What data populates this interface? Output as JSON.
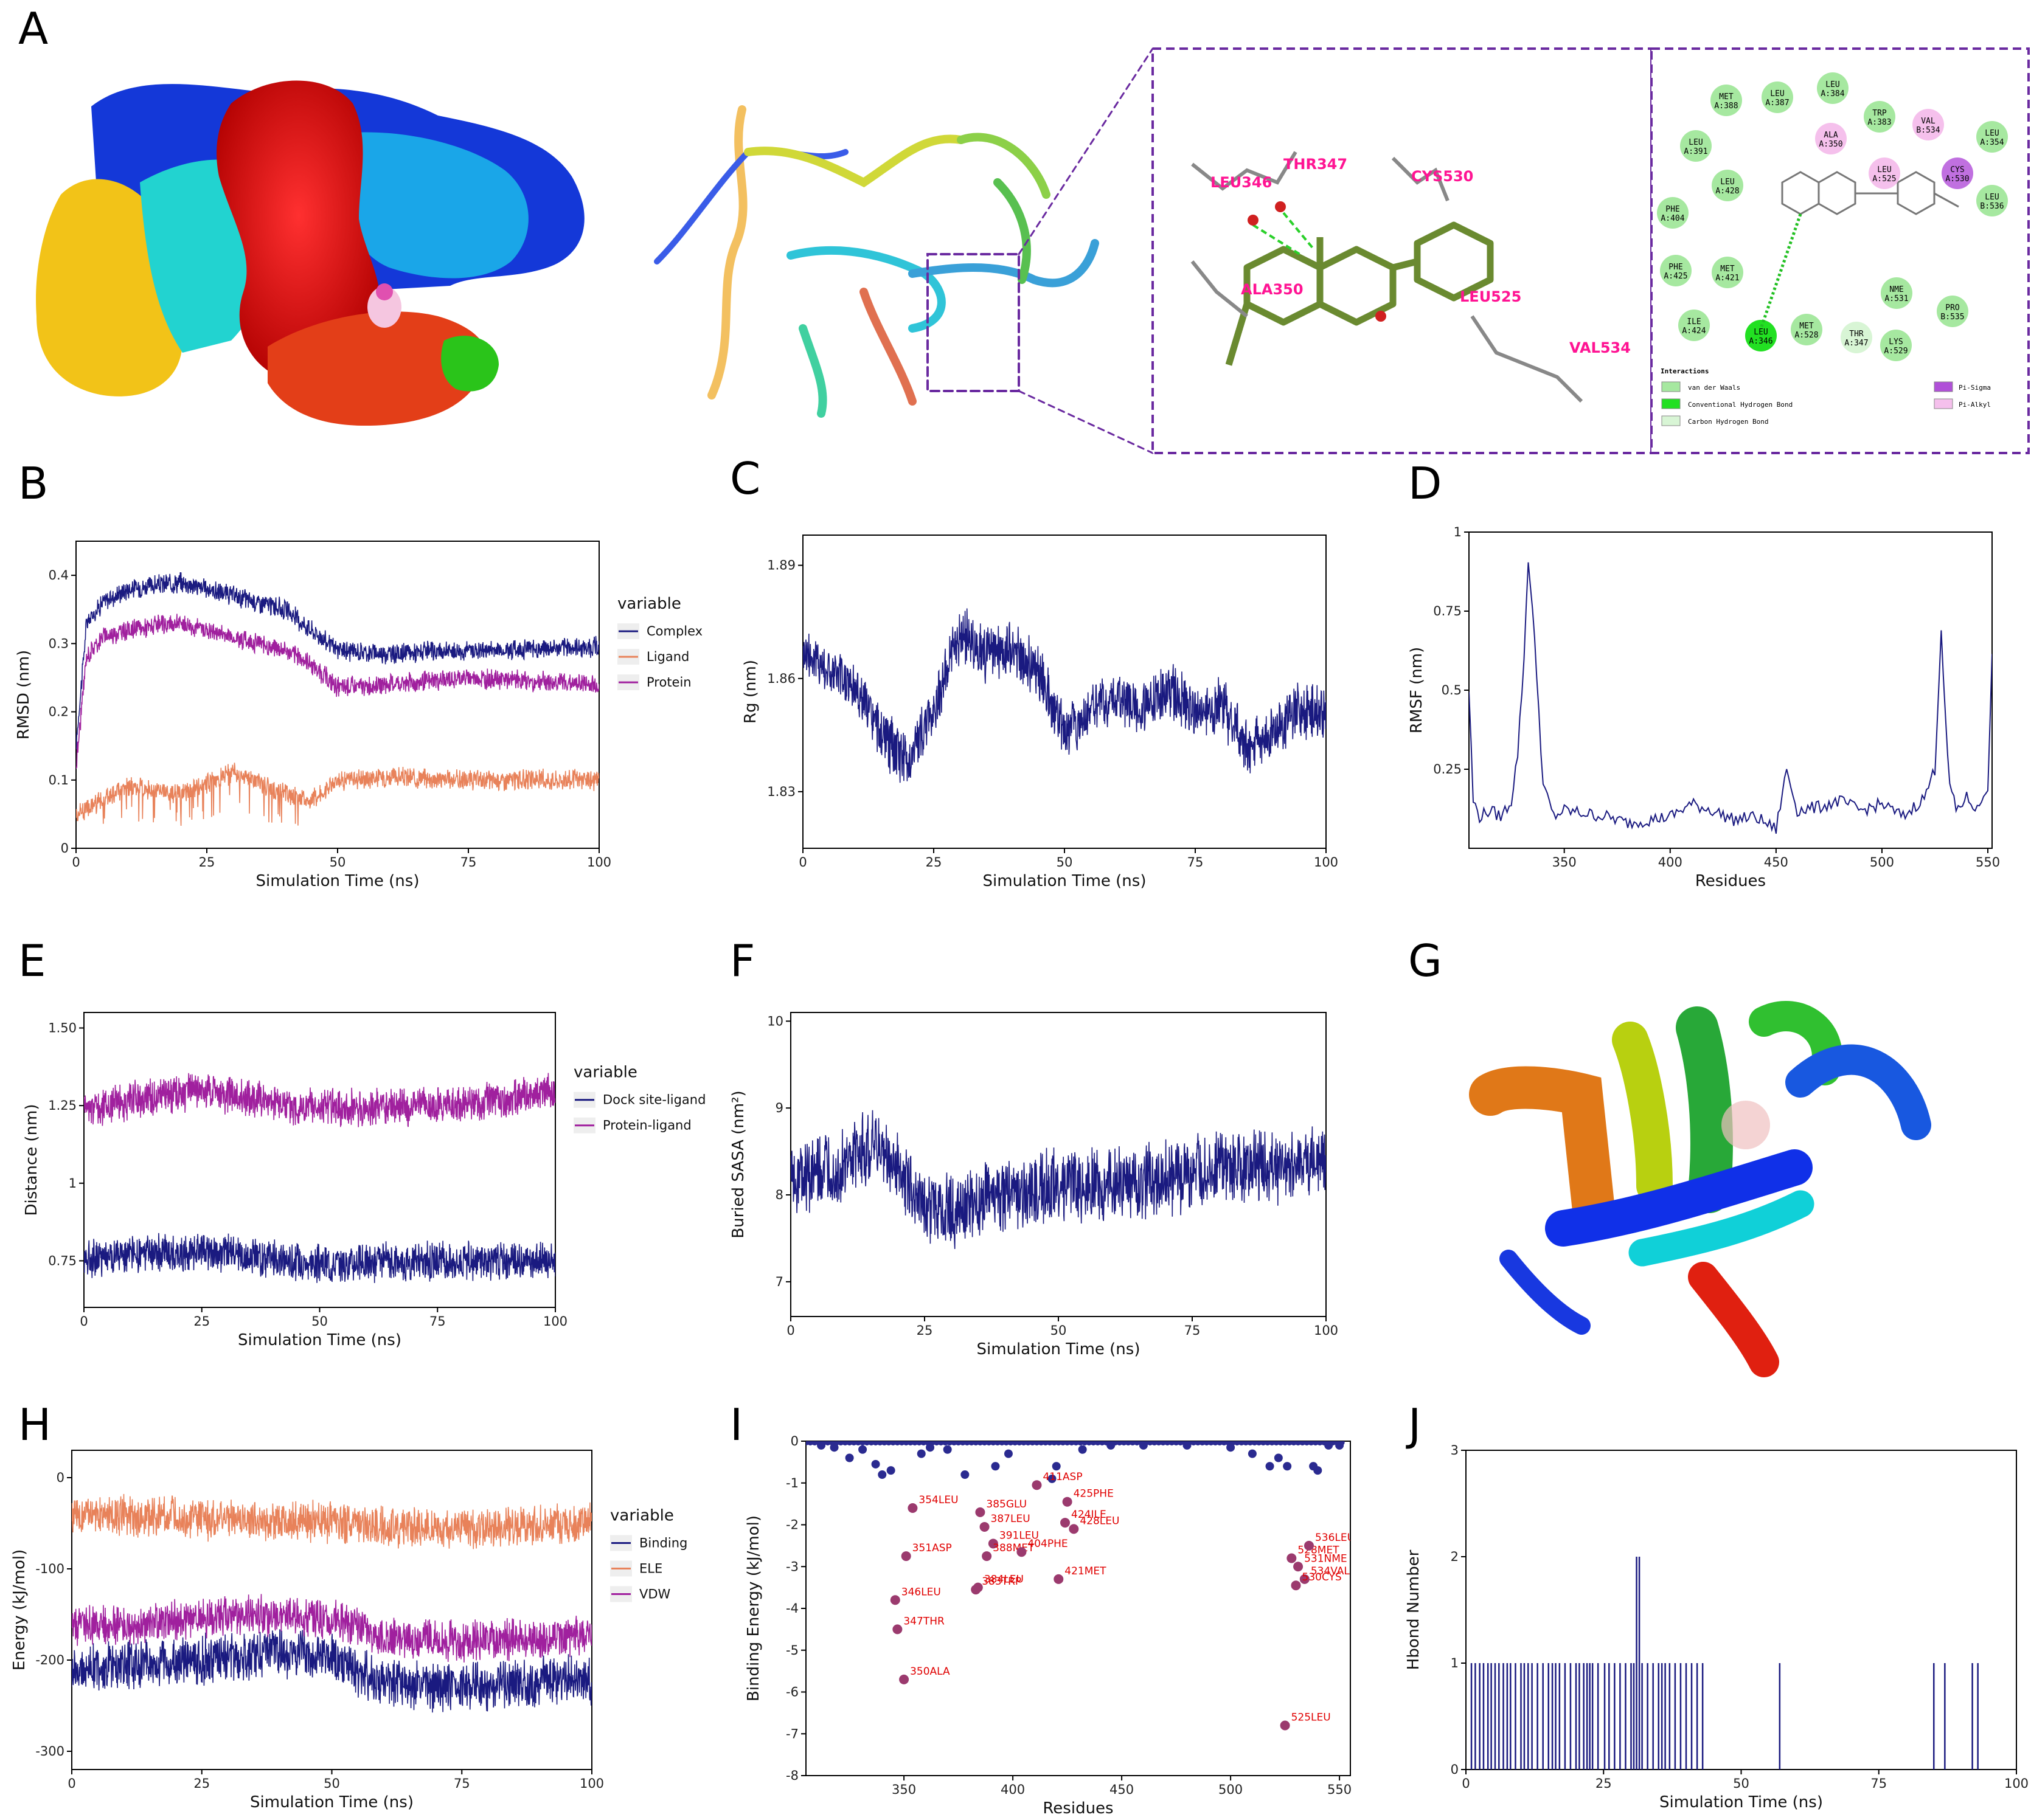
{
  "panel_labels": {
    "A": "A",
    "B": "B",
    "C": "C",
    "D": "D",
    "E": "E",
    "F": "F",
    "G": "G",
    "H": "H",
    "I": "I",
    "J": "J"
  },
  "colors": {
    "navy": "#1a1a80",
    "orange": "#e8825a",
    "purple": "#a0209e",
    "point": "#9b3a6e",
    "annot": "#e00000",
    "pink": "#ff1493"
  },
  "panelA": {
    "residue_labels": [
      "LEU346",
      "THR347",
      "CYS530",
      "ALA350",
      "LEU525",
      "VAL534"
    ],
    "nodes": [
      {
        "name": "MET",
        "num": "A:388"
      },
      {
        "name": "LEU",
        "num": "A:387"
      },
      {
        "name": "LEU",
        "num": "A:384"
      },
      {
        "name": "TRP",
        "num": "A:383"
      },
      {
        "name": "VAL",
        "num": "B:534"
      },
      {
        "name": "LEU",
        "num": "A:354"
      },
      {
        "name": "LEU",
        "num": "A:391"
      },
      {
        "name": "ALA",
        "num": "A:350"
      },
      {
        "name": "LEU",
        "num": "A:428"
      },
      {
        "name": "LEU",
        "num": "A:525"
      },
      {
        "name": "CYS",
        "num": "A:530"
      },
      {
        "name": "LEU",
        "num": "B:536"
      },
      {
        "name": "PHE",
        "num": "A:404"
      },
      {
        "name": "PHE",
        "num": "A:425"
      },
      {
        "name": "MET",
        "num": "A:421"
      },
      {
        "name": "NME",
        "num": "A:531"
      },
      {
        "name": "ILE",
        "num": "A:424"
      },
      {
        "name": "LEU",
        "num": "A:346"
      },
      {
        "name": "MET",
        "num": "A:528"
      },
      {
        "name": "THR",
        "num": "A:347"
      },
      {
        "name": "PRO",
        "num": "B:535"
      },
      {
        "name": "LYS",
        "num": "A:529"
      }
    ],
    "interactions_title": "Interactions",
    "interactions": [
      "van der Waals",
      "Conventional Hydrogen Bond",
      "Carbon Hydrogen Bond",
      "Pi-Sigma",
      "Pi-Alkyl"
    ]
  },
  "chart_data": [
    {
      "panel": "B",
      "type": "line",
      "xlabel": "Simulation Time (ns)",
      "ylabel": "RMSD (nm)",
      "xlim": [
        0,
        100
      ],
      "ylim": [
        0,
        0.45
      ],
      "xticks": [
        "0",
        "25",
        "50",
        "75",
        "100"
      ],
      "yticks": [
        "0",
        "0.1",
        "0.2",
        "0.3",
        "0.4"
      ],
      "legend_title": "variable",
      "series": [
        {
          "name": "Complex",
          "color": "#1a1a80",
          "x": [
            0,
            2,
            5,
            10,
            20,
            30,
            40,
            45,
            50,
            60,
            75,
            100
          ],
          "values": [
            0.15,
            0.33,
            0.36,
            0.38,
            0.39,
            0.37,
            0.35,
            0.32,
            0.29,
            0.285,
            0.29,
            0.295
          ]
        },
        {
          "name": "Ligand",
          "color": "#e8825a",
          "x": [
            0,
            10,
            20,
            30,
            40,
            45,
            50,
            60,
            75,
            100
          ],
          "values": [
            0.05,
            0.09,
            0.08,
            0.11,
            0.08,
            0.07,
            0.1,
            0.105,
            0.1,
            0.1
          ]
        },
        {
          "name": "Protein",
          "color": "#a0209e",
          "x": [
            0,
            2,
            5,
            10,
            20,
            30,
            40,
            45,
            50,
            60,
            75,
            100
          ],
          "values": [
            0.12,
            0.28,
            0.31,
            0.32,
            0.33,
            0.31,
            0.29,
            0.27,
            0.235,
            0.24,
            0.25,
            0.24
          ]
        }
      ]
    },
    {
      "panel": "C",
      "type": "line",
      "xlabel": "Simulation Time (ns)",
      "ylabel": "Rg (nm)",
      "xlim": [
        0,
        100
      ],
      "ylim": [
        1.815,
        1.898
      ],
      "xticks": [
        "0",
        "25",
        "50",
        "75",
        "100"
      ],
      "yticks": [
        "1.83",
        "1.86",
        "1.89"
      ],
      "series": [
        {
          "name": "Rg",
          "color": "#1a1a80",
          "x": [
            0,
            5,
            10,
            15,
            20,
            25,
            30,
            35,
            40,
            45,
            50,
            55,
            60,
            65,
            70,
            75,
            80,
            85,
            90,
            95,
            100
          ],
          "values": [
            1.868,
            1.862,
            1.858,
            1.845,
            1.838,
            1.852,
            1.872,
            1.866,
            1.868,
            1.862,
            1.846,
            1.852,
            1.855,
            1.852,
            1.858,
            1.85,
            1.853,
            1.842,
            1.846,
            1.852,
            1.851
          ]
        }
      ]
    },
    {
      "panel": "D",
      "type": "line",
      "xlabel": "Residues",
      "ylabel": "RMSF (nm)",
      "xlim": [
        305,
        552
      ],
      "ylim": [
        0,
        1.0
      ],
      "xticks": [
        "350",
        "400",
        "450",
        "500",
        "550"
      ],
      "yticks": [
        "0.25",
        "0.5",
        "0.75",
        "1"
      ],
      "series": [
        {
          "name": "RMSF",
          "color": "#1a1a80",
          "x": [
            305,
            307,
            310,
            315,
            320,
            325,
            328,
            331,
            333,
            335,
            337,
            340,
            345,
            350,
            360,
            370,
            380,
            390,
            400,
            410,
            420,
            430,
            440,
            450,
            455,
            460,
            470,
            480,
            490,
            500,
            510,
            520,
            525,
            528,
            530,
            532,
            535,
            540,
            545,
            550,
            552
          ],
          "values": [
            0.5,
            0.15,
            0.1,
            0.12,
            0.1,
            0.15,
            0.3,
            0.6,
            0.92,
            0.75,
            0.55,
            0.2,
            0.1,
            0.12,
            0.11,
            0.1,
            0.08,
            0.09,
            0.1,
            0.14,
            0.12,
            0.09,
            0.1,
            0.06,
            0.25,
            0.12,
            0.13,
            0.15,
            0.12,
            0.14,
            0.1,
            0.16,
            0.25,
            0.7,
            0.4,
            0.2,
            0.12,
            0.16,
            0.12,
            0.2,
            0.6
          ]
        }
      ]
    },
    {
      "panel": "E",
      "type": "line",
      "xlabel": "Simulation Time (ns)",
      "ylabel": "Distance (nm)",
      "xlim": [
        0,
        100
      ],
      "ylim": [
        0.6,
        1.55
      ],
      "xticks": [
        "0",
        "25",
        "50",
        "75",
        "100"
      ],
      "yticks": [
        "0.75",
        "1",
        "1.25",
        "1.50"
      ],
      "legend_title": "variable",
      "series": [
        {
          "name": "Dock site-ligand",
          "color": "#1a1a80",
          "x": [
            0,
            25,
            50,
            75,
            100
          ],
          "values": [
            0.76,
            0.78,
            0.74,
            0.75,
            0.75
          ]
        },
        {
          "name": "Protein-ligand",
          "color": "#a0209e",
          "x": [
            0,
            25,
            50,
            75,
            100
          ],
          "values": [
            1.24,
            1.3,
            1.24,
            1.25,
            1.29
          ]
        }
      ]
    },
    {
      "panel": "F",
      "type": "line",
      "xlabel": "Simulation Time (ns)",
      "ylabel": "Buried SASA (nm²)",
      "xlim": [
        0,
        100
      ],
      "ylim": [
        6.6,
        10.1
      ],
      "xticks": [
        "0",
        "25",
        "50",
        "75",
        "100"
      ],
      "yticks": [
        "7",
        "8",
        "9",
        "10"
      ],
      "series": [
        {
          "name": "Buried SASA",
          "color": "#1a1a80",
          "x": [
            0,
            10,
            15,
            20,
            25,
            30,
            40,
            50,
            60,
            70,
            80,
            90,
            100
          ],
          "values": [
            8.2,
            8.3,
            8.6,
            8.3,
            7.9,
            7.8,
            8.0,
            8.1,
            8.1,
            8.2,
            8.3,
            8.3,
            8.4
          ]
        }
      ]
    },
    {
      "panel": "H",
      "type": "line",
      "xlabel": "Simulation Time (ns)",
      "ylabel": "Energy (kJ/mol)",
      "xlim": [
        0,
        100
      ],
      "ylim": [
        -320,
        30
      ],
      "xticks": [
        "0",
        "25",
        "50",
        "75",
        "100"
      ],
      "yticks": [
        "-300",
        "-200",
        "-100",
        "0"
      ],
      "legend_title": "variable",
      "series": [
        {
          "name": "Binding",
          "color": "#1a1a80",
          "x": [
            0,
            10,
            25,
            40,
            50,
            60,
            75,
            100
          ],
          "values": [
            -210,
            -205,
            -200,
            -190,
            -200,
            -225,
            -230,
            -220
          ]
        },
        {
          "name": "ELE",
          "color": "#e8825a",
          "x": [
            0,
            10,
            25,
            40,
            50,
            60,
            75,
            100
          ],
          "values": [
            -40,
            -42,
            -45,
            -48,
            -48,
            -55,
            -55,
            -50
          ]
        },
        {
          "name": "VDW",
          "color": "#a0209e",
          "x": [
            0,
            10,
            25,
            40,
            50,
            60,
            75,
            100
          ],
          "values": [
            -165,
            -162,
            -155,
            -150,
            -155,
            -175,
            -180,
            -175
          ]
        }
      ]
    },
    {
      "panel": "I",
      "type": "scatter",
      "xlabel": "Residues",
      "ylabel": "Binding Energy (kJ/mol)",
      "xlim": [
        305,
        555
      ],
      "ylim": [
        -8,
        0
      ],
      "xticks": [
        "350",
        "400",
        "450",
        "500",
        "550"
      ],
      "yticks": [
        "-8",
        "-7",
        "-6",
        "-5",
        "-4",
        "-3",
        "-2",
        "-1",
        "0"
      ],
      "labeled_points": [
        {
          "label": "354LEU",
          "x": 354,
          "y": -1.6
        },
        {
          "label": "351ASP",
          "x": 351,
          "y": -2.75
        },
        {
          "label": "346LEU",
          "x": 346,
          "y": -3.8
        },
        {
          "label": "347THR",
          "x": 347,
          "y": -4.5
        },
        {
          "label": "350ALA",
          "x": 350,
          "y": -5.7
        },
        {
          "label": "385GLU",
          "x": 385,
          "y": -1.7
        },
        {
          "label": "387LEU",
          "x": 387,
          "y": -2.05
        },
        {
          "label": "391LEU",
          "x": 391,
          "y": -2.45
        },
        {
          "label": "388MET",
          "x": 388,
          "y": -2.75
        },
        {
          "label": "384LEU",
          "x": 384,
          "y": -3.5
        },
        {
          "label": "383TRP",
          "x": 383,
          "y": -3.55
        },
        {
          "label": "411ASP",
          "x": 411,
          "y": -1.05
        },
        {
          "label": "425PHE",
          "x": 425,
          "y": -1.45
        },
        {
          "label": "424ILE",
          "x": 424,
          "y": -1.95
        },
        {
          "label": "428LEU",
          "x": 428,
          "y": -2.1
        },
        {
          "label": "404PHE",
          "x": 404,
          "y": -2.65
        },
        {
          "label": "421MET",
          "x": 421,
          "y": -3.3
        },
        {
          "label": "528MET",
          "x": 528,
          "y": -2.8
        },
        {
          "label": "536LEU",
          "x": 536,
          "y": -2.5
        },
        {
          "label": "531NME",
          "x": 531,
          "y": -3.0
        },
        {
          "label": "534VAL",
          "x": 534,
          "y": -3.3
        },
        {
          "label": "530CYS",
          "x": 530,
          "y": -3.45
        },
        {
          "label": "525LEU",
          "x": 525,
          "y": -6.8
        }
      ],
      "background_points": [
        {
          "x": 312,
          "y": -0.1
        },
        {
          "x": 318,
          "y": -0.15
        },
        {
          "x": 325,
          "y": -0.4
        },
        {
          "x": 331,
          "y": -0.2
        },
        {
          "x": 337,
          "y": -0.55
        },
        {
          "x": 340,
          "y": -0.8
        },
        {
          "x": 344,
          "y": -0.7
        },
        {
          "x": 358,
          "y": -0.3
        },
        {
          "x": 362,
          "y": -0.15
        },
        {
          "x": 370,
          "y": -0.2
        },
        {
          "x": 378,
          "y": -0.8
        },
        {
          "x": 392,
          "y": -0.6
        },
        {
          "x": 398,
          "y": -0.3
        },
        {
          "x": 418,
          "y": -0.9
        },
        {
          "x": 420,
          "y": -0.6
        },
        {
          "x": 432,
          "y": -0.2
        },
        {
          "x": 445,
          "y": -0.1
        },
        {
          "x": 460,
          "y": -0.1
        },
        {
          "x": 480,
          "y": -0.1
        },
        {
          "x": 500,
          "y": -0.15
        },
        {
          "x": 510,
          "y": -0.3
        },
        {
          "x": 518,
          "y": -0.6
        },
        {
          "x": 522,
          "y": -0.4
        },
        {
          "x": 526,
          "y": -0.6
        },
        {
          "x": 538,
          "y": -0.6
        },
        {
          "x": 540,
          "y": -0.7
        },
        {
          "x": 545,
          "y": -0.1
        },
        {
          "x": 550,
          "y": -0.1
        }
      ]
    },
    {
      "panel": "J",
      "type": "bar",
      "xlabel": "Simulation Time (ns)",
      "ylabel": "Hbond Number",
      "xlim": [
        0,
        100
      ],
      "ylim": [
        0,
        3
      ],
      "xticks": [
        "0",
        "25",
        "50",
        "75",
        "100"
      ],
      "yticks": [
        "0",
        "1",
        "2",
        "3"
      ],
      "x": [
        1,
        1.7,
        2.5,
        3.2,
        4,
        4.6,
        5.3,
        6,
        6.8,
        7.5,
        8.1,
        9,
        10,
        10.6,
        11.3,
        12,
        13,
        14,
        15,
        15.7,
        16.3,
        17,
        18,
        19,
        20,
        20.6,
        21.4,
        22,
        22.5,
        23,
        24,
        25.2,
        26,
        27,
        28,
        29,
        30,
        30.5,
        31,
        31.5,
        32,
        33,
        34,
        35,
        35.6,
        36.2,
        37,
        38,
        39,
        40,
        41,
        42,
        43,
        57,
        85,
        87,
        92,
        93
      ],
      "values": [
        1,
        1,
        1,
        1,
        1,
        1,
        1,
        1,
        1,
        1,
        1,
        1,
        1,
        1,
        1,
        1,
        1,
        1,
        1,
        1,
        1,
        1,
        1,
        1,
        1,
        1,
        1,
        1,
        1,
        1,
        1,
        1,
        1,
        1,
        1,
        1,
        1,
        1,
        2,
        2,
        1,
        1,
        1,
        1,
        1,
        1,
        1,
        1,
        1,
        1,
        1,
        1,
        1,
        1,
        1,
        1,
        1,
        1
      ]
    }
  ]
}
